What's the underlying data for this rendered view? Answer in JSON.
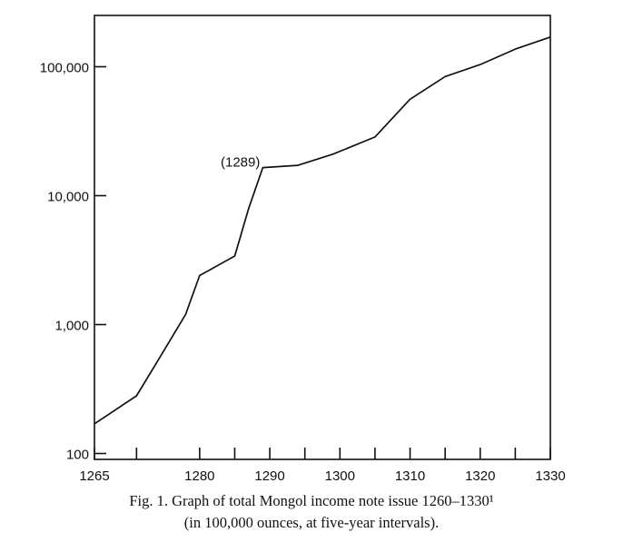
{
  "caption": {
    "line1": "Fig. 1. Graph of total Mongol income note issue 1260–1330¹",
    "line2": "(in 100,000 ounces, at five-year intervals)."
  },
  "chart_data": {
    "type": "line",
    "title": "",
    "xlabel": "",
    "ylabel": "",
    "yscale": "log",
    "xlim": [
      1265,
      1330
    ],
    "ylim": [
      90,
      250000
    ],
    "grid": false,
    "x_ticks": [
      1265,
      1271,
      1280,
      1285,
      1290,
      1295,
      1300,
      1305,
      1310,
      1315,
      1320,
      1325,
      1330
    ],
    "x_tick_labels": [
      {
        "value": 1265,
        "label": "1265"
      },
      {
        "value": 1280,
        "label": "1280"
      },
      {
        "value": 1290,
        "label": "1290"
      },
      {
        "value": 1300,
        "label": "1300"
      },
      {
        "value": 1310,
        "label": "1310"
      },
      {
        "value": 1320,
        "label": "1320"
      },
      {
        "value": 1330,
        "label": "1330"
      }
    ],
    "y_ticks": [
      {
        "value": 100,
        "label": "100"
      },
      {
        "value": 1000,
        "label": "1,000"
      },
      {
        "value": 10000,
        "label": "10,000"
      },
      {
        "value": 100000,
        "label": "100,000"
      }
    ],
    "series": [
      {
        "x": [
          1265,
          1271,
          1274,
          1278,
          1280,
          1285,
          1287,
          1289,
          1294,
          1299,
          1305,
          1310,
          1315,
          1320,
          1325,
          1330
        ],
        "values": [
          170,
          280,
          520,
          1200,
          2400,
          3400,
          8000,
          16500,
          17200,
          21000,
          28500,
          56000,
          84000,
          104000,
          137000,
          170000
        ]
      }
    ],
    "annotations": [
      {
        "x": 1289,
        "y": 16500,
        "text": "(1289)"
      }
    ]
  }
}
